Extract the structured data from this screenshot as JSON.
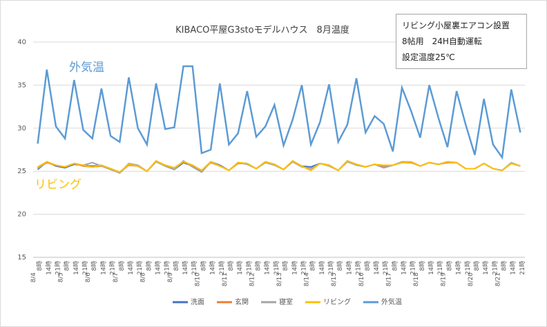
{
  "chart_data": {
    "type": "line",
    "title": "KIBACO平屋G3stoモデルハウス　8月温度",
    "annotations": [
      "外気温",
      "リビング"
    ],
    "note": [
      "リビング小屋裏エアコン設置",
      "8帖用　24H自動運転",
      "設定温度25℃"
    ],
    "dates": [
      "8/4",
      "8/5",
      "8/6",
      "8/7",
      "8/8",
      "8/9",
      "8/10",
      "8/11",
      "8/12",
      "8/13",
      "8/14",
      "8/15",
      "8/16",
      "8/17",
      "8/18",
      "8/19",
      "8/20",
      "8/21"
    ],
    "categories": [
      "8時",
      "14時",
      "21時",
      "8時",
      "14時",
      "21時",
      "8時",
      "14時",
      "21時",
      "8時",
      "14時",
      "21時",
      "8時",
      "14時",
      "21時",
      "8時",
      "14時",
      "21時",
      "8時",
      "14時",
      "21時",
      "8時",
      "14時",
      "21時",
      "8時",
      "14時",
      "21時",
      "8時",
      "14時",
      "21時",
      "8時",
      "14時",
      "21時",
      "8時",
      "14時",
      "21時",
      "8時",
      "14時",
      "21時",
      "8時",
      "14時",
      "21時",
      "8時",
      "14時",
      "21時",
      "8時",
      "14時",
      "21時",
      "8時",
      "14時",
      "21時",
      "8時",
      "14時",
      "21時"
    ],
    "ylim": [
      15,
      40
    ],
    "yticks": [
      15,
      20,
      25,
      30,
      35,
      40
    ],
    "grid": true,
    "series": [
      {
        "name": "洗面",
        "color": "#4472c4",
        "values": [
          25.2,
          26.1,
          25.6,
          25.4,
          25.8,
          25.7,
          25.6,
          25.7,
          25.3,
          24.8,
          25.8,
          25.6,
          25.0,
          26.2,
          25.6,
          25.2,
          26.0,
          25.6,
          24.9,
          26.1,
          25.7,
          25.1,
          26.0,
          25.9,
          25.3,
          26.1,
          25.8,
          25.2,
          26.2,
          25.6,
          25.5,
          25.9,
          25.7,
          25.1,
          26.2,
          25.8,
          25.5,
          25.8,
          25.4,
          25.7,
          26.0,
          26.1,
          25.6,
          26.0,
          25.8,
          26.1,
          26.0,
          25.3,
          25.3,
          25.9,
          25.3,
          25.1,
          25.9,
          25.6
        ]
      },
      {
        "name": "玄関",
        "color": "#ed7d31",
        "values": [
          25.4,
          26.0,
          25.7,
          25.5,
          25.9,
          25.6,
          25.5,
          25.6,
          25.3,
          24.9,
          25.7,
          25.6,
          25.0,
          26.1,
          25.7,
          25.4,
          26.1,
          25.7,
          25.1,
          26.0,
          25.6,
          25.1,
          25.9,
          25.9,
          25.3,
          26.0,
          25.8,
          25.2,
          26.1,
          25.6,
          25.1,
          25.9,
          25.7,
          25.1,
          26.1,
          25.8,
          25.5,
          25.8,
          25.6,
          25.7,
          26.0,
          26.0,
          25.6,
          26.0,
          25.8,
          26.0,
          26.0,
          25.3,
          25.3,
          25.9,
          25.3,
          25.1,
          25.9,
          25.6
        ]
      },
      {
        "name": "寝室",
        "color": "#a5a5a5",
        "values": [
          25.3,
          26.1,
          25.7,
          25.5,
          25.9,
          25.7,
          26.0,
          25.6,
          25.2,
          24.8,
          25.9,
          25.7,
          25.0,
          26.1,
          25.6,
          25.2,
          26.2,
          25.5,
          24.9,
          26.1,
          25.6,
          25.1,
          26.0,
          25.8,
          25.3,
          26.0,
          25.7,
          25.2,
          26.1,
          25.5,
          25.3,
          25.9,
          25.6,
          25.1,
          26.1,
          25.7,
          25.5,
          25.8,
          25.4,
          25.7,
          26.1,
          26.1,
          25.6,
          26.0,
          25.8,
          26.1,
          26.0,
          25.3,
          25.3,
          25.9,
          25.3,
          25.1,
          26.0,
          25.6
        ]
      },
      {
        "name": "リビング",
        "color": "#ffc000",
        "values": [
          25.5,
          26.1,
          25.7,
          25.5,
          25.9,
          25.7,
          25.5,
          25.7,
          25.3,
          24.9,
          25.8,
          25.6,
          25.0,
          26.2,
          25.7,
          25.4,
          26.1,
          25.7,
          25.1,
          26.1,
          25.6,
          25.1,
          26.0,
          25.9,
          25.3,
          26.1,
          25.8,
          25.2,
          26.2,
          25.6,
          25.1,
          25.9,
          25.7,
          25.1,
          26.2,
          25.8,
          25.5,
          25.8,
          25.7,
          25.7,
          26.0,
          26.1,
          25.6,
          26.0,
          25.8,
          26.1,
          26.0,
          25.3,
          25.3,
          25.9,
          25.3,
          25.1,
          25.9,
          25.6
        ]
      },
      {
        "name": "外気温",
        "color": "#5b9bd5",
        "values": [
          28.2,
          36.8,
          30.2,
          28.8,
          35.6,
          29.8,
          28.8,
          34.6,
          29.1,
          28.4,
          35.9,
          30.0,
          28.1,
          35.2,
          29.9,
          30.1,
          37.2,
          37.2,
          27.1,
          27.5,
          35.2,
          28.1,
          29.4,
          34.3,
          29.0,
          30.2,
          32.7,
          28.0,
          31.0,
          35.0,
          28.1,
          30.7,
          35.1,
          28.4,
          30.4,
          35.8,
          29.5,
          31.4,
          30.5,
          27.3,
          34.7,
          32.0,
          28.9,
          35.0,
          31.2,
          27.8,
          34.3,
          30.4,
          26.9,
          33.4,
          28.1,
          26.6,
          34.5,
          29.5
        ]
      }
    ]
  }
}
